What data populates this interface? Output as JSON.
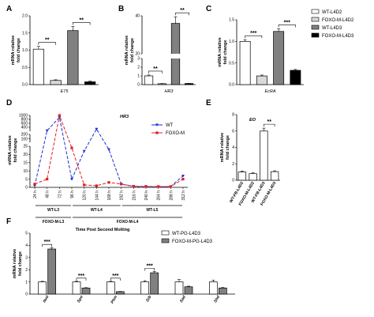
{
  "panels": [
    "A",
    "B",
    "C",
    "D",
    "E",
    "F"
  ],
  "colors": {
    "white": "#ffffff",
    "light_gray": "#d9d9d9",
    "gray": "#808080",
    "black": "#000000",
    "wt_line": "#1f2fd0",
    "foxo_line": "#e02020"
  },
  "legend_abc": [
    "WT-L4D2",
    "FOXO-M-L4D2",
    "WT-L4D3",
    "FOXO-M-L4D3"
  ],
  "chart_data": [
    {
      "panel": "A",
      "type": "bar",
      "ylabel": "mRNA relative\nfold change",
      "ylim": [
        0,
        2
      ],
      "yticks": [
        "0.0",
        "0.5",
        "1.0",
        "1.5",
        "2.0"
      ],
      "xlabel": "E75",
      "values": [
        1.03,
        0.12,
        1.57,
        0.08
      ],
      "errors": [
        0.08,
        0.02,
        0.12,
        0.02
      ],
      "fills": [
        "#ffffff",
        "#d9d9d9",
        "#808080",
        "#000000"
      ],
      "sig": [
        {
          "a": 0,
          "b": 1,
          "label": "**"
        },
        {
          "a": 2,
          "b": 3,
          "label": "**"
        }
      ]
    },
    {
      "panel": "B",
      "type": "bar",
      "ylabel": "mRNA relative\nfold change",
      "ylim": [
        0,
        40
      ],
      "yticks": [
        "0",
        "1",
        "2",
        "3",
        "20",
        "40"
      ],
      "axis_break": [
        3,
        20
      ],
      "xlabel": "HR3",
      "values": [
        1.0,
        0.1,
        36,
        0.12
      ],
      "errors": [
        0.1,
        0.03,
        3.5,
        0.02
      ],
      "fills": [
        "#ffffff",
        "#d9d9d9",
        "#808080",
        "#000000"
      ],
      "sig": [
        {
          "a": 0,
          "b": 1,
          "label": "**"
        },
        {
          "a": 2,
          "b": 3,
          "label": "**"
        }
      ]
    },
    {
      "panel": "C",
      "type": "bar",
      "ylabel": "mRNA relative\nfold change",
      "ylim": [
        0,
        1.5
      ],
      "yticks": [
        "0.0",
        "0.5",
        "1.0",
        "1.5"
      ],
      "xlabel": "EcRA",
      "values": [
        1.0,
        0.2,
        1.23,
        0.33
      ],
      "errors": [
        0.04,
        0.02,
        0.06,
        0.02
      ],
      "fills": [
        "#ffffff",
        "#d9d9d9",
        "#808080",
        "#000000"
      ],
      "sig": [
        {
          "a": 0,
          "b": 1,
          "label": "***"
        },
        {
          "a": 2,
          "b": 3,
          "label": "***"
        }
      ]
    },
    {
      "panel": "D",
      "type": "line",
      "title": "HR3",
      "ylabel": "mRNA relative\nfold change",
      "yticks": [
        "0",
        "5",
        "10",
        "15",
        "20",
        "25",
        "100",
        "200",
        "400",
        "600",
        "800",
        "1000"
      ],
      "x": [
        "24 h",
        "48 h",
        "72 h",
        "96 h",
        "120 h",
        "144 h",
        "168 h",
        "192 h",
        "216 h",
        "240 h",
        "264 h",
        "288 h",
        "312 h"
      ],
      "series": [
        {
          "name": "WT",
          "marker": "triangle-down",
          "values": [
            1,
            230,
            900,
            5,
            22,
            310,
            23,
            2,
            0.5,
            0.4,
            0.3,
            0.5,
            7
          ]
        },
        {
          "name": "FOXO-M",
          "marker": "square",
          "values": [
            2,
            5,
            1000,
            24,
            1.5,
            1,
            3,
            2,
            0.7,
            0.6,
            0.5,
            0.5,
            5
          ]
        }
      ],
      "stages": [
        {
          "label": "WT-L3",
          "from": 0,
          "to": 3
        },
        {
          "label": "WT-L4",
          "from": 3,
          "to": 7
        },
        {
          "label": "WT-L5",
          "from": 7,
          "to": 12
        },
        {
          "label": "FOXO-M-L3",
          "from": 0,
          "to": 3
        },
        {
          "label": "FOXO-M-L4",
          "from": 3,
          "to": 12
        }
      ],
      "xaxis_title": "Time Post Second Molting"
    },
    {
      "panel": "E",
      "type": "bar",
      "title": "EO",
      "ylabel": "mRNA relative\nfold change",
      "ylim": [
        0,
        8
      ],
      "yticks": [
        "0",
        "2",
        "4",
        "6",
        "8"
      ],
      "categories": [
        "WT-FB-L4D2",
        "FOXO-M-L4D2",
        "WT-FB-L4D3",
        "FOXO-M-L4D3"
      ],
      "values": [
        1.0,
        0.8,
        6.0,
        1.05
      ],
      "errors": [
        0.12,
        0.1,
        0.35,
        0.1
      ],
      "fills": [
        "#ffffff",
        "#ffffff",
        "#ffffff",
        "#ffffff"
      ],
      "sig": [
        {
          "a": 2,
          "b": 3,
          "label": "**"
        }
      ]
    },
    {
      "panel": "F",
      "type": "bar",
      "ylabel": "mRNA relative\nfold change",
      "ylim": [
        0,
        5
      ],
      "yticks": [
        "0",
        "1",
        "2",
        "3",
        "4",
        "5"
      ],
      "categories": [
        "Nvd",
        "Spo",
        "Phm",
        "Dib",
        "Sad",
        "Shd"
      ],
      "series": [
        {
          "name": "WT-PG-L4D3",
          "fill": "#ffffff",
          "values": [
            1.0,
            1.0,
            1.0,
            1.0,
            1.0,
            1.0
          ],
          "errors": [
            0.05,
            0.05,
            0.05,
            0.1,
            0.2,
            0.15
          ]
        },
        {
          "name": "FOXO-M-PG-L4D3",
          "fill": "#808080",
          "values": [
            3.7,
            0.5,
            0.2,
            1.75,
            0.6,
            0.5
          ],
          "errors": [
            0.12,
            0.03,
            0.02,
            0.1,
            0.05,
            0.04
          ]
        }
      ],
      "sig": [
        {
          "group": 0,
          "label": "***"
        },
        {
          "group": 1,
          "label": "***"
        },
        {
          "group": 2,
          "label": "***"
        },
        {
          "group": 3,
          "label": "***"
        }
      ]
    }
  ]
}
